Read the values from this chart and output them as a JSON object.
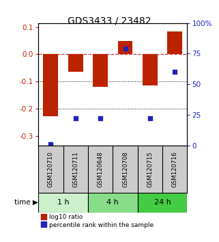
{
  "title": "GDS3433 / 23482",
  "samples": [
    "GSM120710",
    "GSM120711",
    "GSM120648",
    "GSM120708",
    "GSM120715",
    "GSM120716"
  ],
  "log10_ratio": [
    -0.228,
    -0.065,
    -0.12,
    0.05,
    -0.115,
    0.085
  ],
  "percentile_rank": [
    1.0,
    22.0,
    22.0,
    79.0,
    22.0,
    60.0
  ],
  "time_groups": [
    {
      "label": "1 h",
      "indices": [
        0,
        1
      ],
      "color": "#ccf0cc"
    },
    {
      "label": "4 h",
      "indices": [
        2,
        3
      ],
      "color": "#88dd88"
    },
    {
      "label": "24 h",
      "indices": [
        4,
        5
      ],
      "color": "#44cc44"
    }
  ],
  "ylim_left": [
    -0.335,
    0.115
  ],
  "ylim_right": [
    0,
    100
  ],
  "yticks_left": [
    0.1,
    0.0,
    -0.1,
    -0.2,
    -0.3
  ],
  "yticks_right": [
    100,
    75,
    50,
    25,
    0
  ],
  "bar_color": "#bb2200",
  "dot_color": "#2222bb",
  "dash_color": "#cc3333",
  "background_color": "#ffffff",
  "sample_bg": "#cccccc",
  "legend_red_label": "log10 ratio",
  "legend_blue_label": "percentile rank within the sample"
}
